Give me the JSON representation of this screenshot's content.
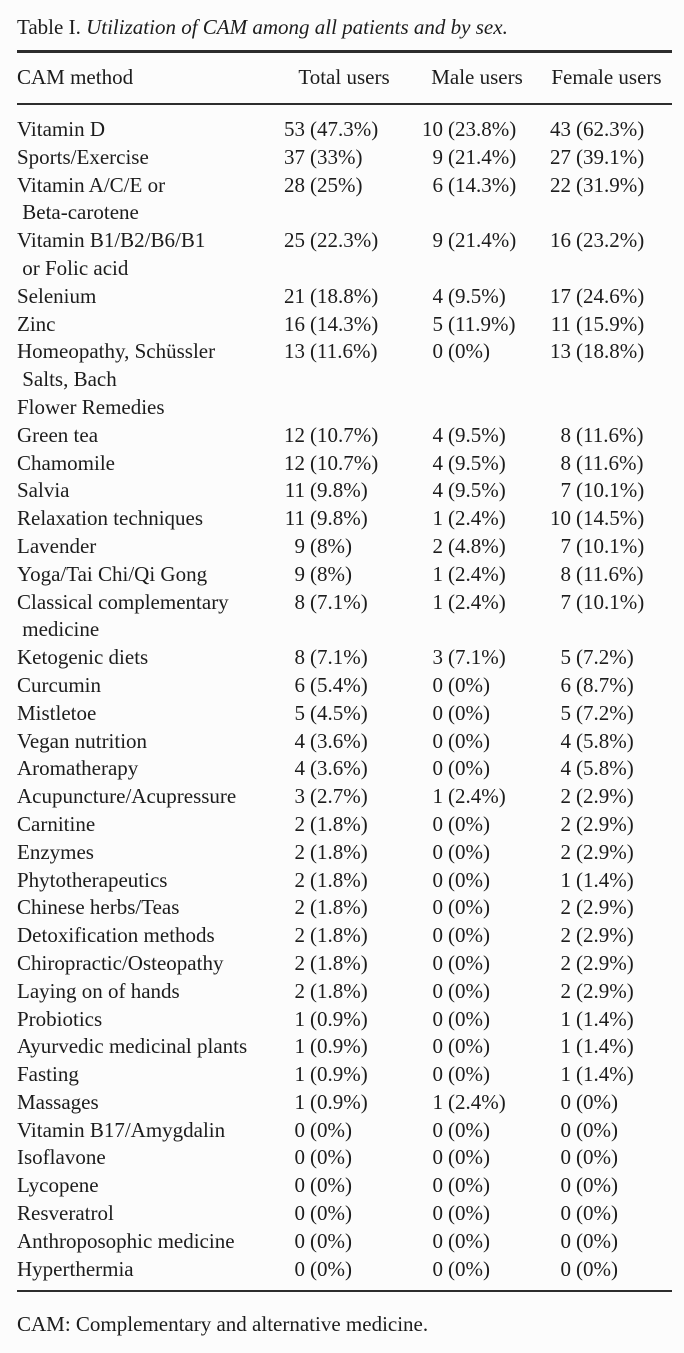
{
  "table": {
    "title_label": "Table I. ",
    "title_caption": "Utilization of CAM among all patients and by sex.",
    "columns": [
      "CAM method",
      "Total users",
      "Male users",
      "Female users"
    ],
    "rows": [
      {
        "method_lines": [
          "Vitamin D"
        ],
        "total": {
          "n": "53",
          "pct": "(47.3%)"
        },
        "male": {
          "n": "10",
          "pct": "(23.8%)"
        },
        "female": {
          "n": "43",
          "pct": "(62.3%)"
        }
      },
      {
        "method_lines": [
          "Sports/Exercise"
        ],
        "total": {
          "n": "37",
          "pct": "(33%)"
        },
        "male": {
          "n": "9",
          "pct": "(21.4%)"
        },
        "female": {
          "n": "27",
          "pct": "(39.1%)"
        }
      },
      {
        "method_lines": [
          "Vitamin A/C/E or",
          " Beta-carotene"
        ],
        "total": {
          "n": "28",
          "pct": "(25%)"
        },
        "male": {
          "n": "6",
          "pct": "(14.3%)"
        },
        "female": {
          "n": "22",
          "pct": "(31.9%)"
        }
      },
      {
        "method_lines": [
          "Vitamin B1/B2/B6/B1",
          " or Folic acid"
        ],
        "total": {
          "n": "25",
          "pct": "(22.3%)"
        },
        "male": {
          "n": "9",
          "pct": "(21.4%)"
        },
        "female": {
          "n": "16",
          "pct": "(23.2%)"
        }
      },
      {
        "method_lines": [
          "Selenium"
        ],
        "total": {
          "n": "21",
          "pct": "(18.8%)"
        },
        "male": {
          "n": "4",
          "pct": "(9.5%)"
        },
        "female": {
          "n": "17",
          "pct": "(24.6%)"
        }
      },
      {
        "method_lines": [
          "Zinc"
        ],
        "total": {
          "n": "16",
          "pct": "(14.3%)"
        },
        "male": {
          "n": "5",
          "pct": "(11.9%)"
        },
        "female": {
          "n": "11",
          "pct": "(15.9%)"
        }
      },
      {
        "method_lines": [
          "Homeopathy, Schüssler",
          " Salts, Bach",
          "Flower Remedies"
        ],
        "total": {
          "n": "13",
          "pct": "(11.6%)"
        },
        "male": {
          "n": "0",
          "pct": "(0%)"
        },
        "female": {
          "n": "13",
          "pct": "(18.8%)"
        }
      },
      {
        "method_lines": [
          "Green tea"
        ],
        "total": {
          "n": "12",
          "pct": "(10.7%)"
        },
        "male": {
          "n": "4",
          "pct": "(9.5%)"
        },
        "female": {
          "n": "8",
          "pct": "(11.6%)"
        }
      },
      {
        "method_lines": [
          "Chamomile"
        ],
        "total": {
          "n": "12",
          "pct": "(10.7%)"
        },
        "male": {
          "n": "4",
          "pct": "(9.5%)"
        },
        "female": {
          "n": "8",
          "pct": "(11.6%)"
        }
      },
      {
        "method_lines": [
          "Salvia"
        ],
        "total": {
          "n": "11",
          "pct": "(9.8%)"
        },
        "male": {
          "n": "4",
          "pct": "(9.5%)"
        },
        "female": {
          "n": "7",
          "pct": "(10.1%)"
        }
      },
      {
        "method_lines": [
          "Relaxation techniques"
        ],
        "total": {
          "n": "11",
          "pct": "(9.8%)"
        },
        "male": {
          "n": "1",
          "pct": "(2.4%)"
        },
        "female": {
          "n": "10",
          "pct": "(14.5%)"
        }
      },
      {
        "method_lines": [
          "Lavender"
        ],
        "total": {
          "n": "9",
          "pct": "(8%)"
        },
        "male": {
          "n": "2",
          "pct": "(4.8%)"
        },
        "female": {
          "n": "7",
          "pct": "(10.1%)"
        }
      },
      {
        "method_lines": [
          "Yoga/Tai Chi/Qi Gong"
        ],
        "total": {
          "n": "9",
          "pct": "(8%)"
        },
        "male": {
          "n": "1",
          "pct": "(2.4%)"
        },
        "female": {
          "n": "8",
          "pct": "(11.6%)"
        }
      },
      {
        "method_lines": [
          "Classical complementary",
          " medicine"
        ],
        "total": {
          "n": "8",
          "pct": "(7.1%)"
        },
        "male": {
          "n": "1",
          "pct": "(2.4%)"
        },
        "female": {
          "n": "7",
          "pct": "(10.1%)"
        }
      },
      {
        "method_lines": [
          "Ketogenic diets"
        ],
        "total": {
          "n": "8",
          "pct": "(7.1%)"
        },
        "male": {
          "n": "3",
          "pct": "(7.1%)"
        },
        "female": {
          "n": "5",
          "pct": "(7.2%)"
        }
      },
      {
        "method_lines": [
          "Curcumin"
        ],
        "total": {
          "n": "6",
          "pct": "(5.4%)"
        },
        "male": {
          "n": "0",
          "pct": "(0%)"
        },
        "female": {
          "n": "6",
          "pct": "(8.7%)"
        }
      },
      {
        "method_lines": [
          "Mistletoe"
        ],
        "total": {
          "n": "5",
          "pct": "(4.5%)"
        },
        "male": {
          "n": "0",
          "pct": "(0%)"
        },
        "female": {
          "n": "5",
          "pct": "(7.2%)"
        }
      },
      {
        "method_lines": [
          "Vegan nutrition"
        ],
        "total": {
          "n": "4",
          "pct": "(3.6%)"
        },
        "male": {
          "n": "0",
          "pct": "(0%)"
        },
        "female": {
          "n": "4",
          "pct": "(5.8%)"
        }
      },
      {
        "method_lines": [
          "Aromatherapy"
        ],
        "total": {
          "n": "4",
          "pct": "(3.6%)"
        },
        "male": {
          "n": "0",
          "pct": "(0%)"
        },
        "female": {
          "n": "4",
          "pct": "(5.8%)"
        }
      },
      {
        "method_lines": [
          "Acupuncture/Acupressure"
        ],
        "total": {
          "n": "3",
          "pct": "(2.7%)"
        },
        "male": {
          "n": "1",
          "pct": "(2.4%)"
        },
        "female": {
          "n": "2",
          "pct": "(2.9%)"
        }
      },
      {
        "method_lines": [
          "Carnitine"
        ],
        "total": {
          "n": "2",
          "pct": "(1.8%)"
        },
        "male": {
          "n": "0",
          "pct": "(0%)"
        },
        "female": {
          "n": "2",
          "pct": "(2.9%)"
        }
      },
      {
        "method_lines": [
          "Enzymes"
        ],
        "total": {
          "n": "2",
          "pct": "(1.8%)"
        },
        "male": {
          "n": "0",
          "pct": "(0%)"
        },
        "female": {
          "n": "2",
          "pct": "(2.9%)"
        }
      },
      {
        "method_lines": [
          "Phytotherapeutics"
        ],
        "total": {
          "n": "2",
          "pct": "(1.8%)"
        },
        "male": {
          "n": "0",
          "pct": "(0%)"
        },
        "female": {
          "n": "1",
          "pct": "(1.4%)"
        }
      },
      {
        "method_lines": [
          "Chinese herbs/Teas"
        ],
        "total": {
          "n": "2",
          "pct": "(1.8%)"
        },
        "male": {
          "n": "0",
          "pct": "(0%)"
        },
        "female": {
          "n": "2",
          "pct": "(2.9%)"
        }
      },
      {
        "method_lines": [
          "Detoxification methods"
        ],
        "total": {
          "n": "2",
          "pct": "(1.8%)"
        },
        "male": {
          "n": "0",
          "pct": "(0%)"
        },
        "female": {
          "n": "2",
          "pct": "(2.9%)"
        }
      },
      {
        "method_lines": [
          "Chiropractic/Osteopathy"
        ],
        "total": {
          "n": "2",
          "pct": "(1.8%)"
        },
        "male": {
          "n": "0",
          "pct": "(0%)"
        },
        "female": {
          "n": "2",
          "pct": "(2.9%)"
        }
      },
      {
        "method_lines": [
          "Laying on of hands"
        ],
        "total": {
          "n": "2",
          "pct": "(1.8%)"
        },
        "male": {
          "n": "0",
          "pct": "(0%)"
        },
        "female": {
          "n": "2",
          "pct": "(2.9%)"
        }
      },
      {
        "method_lines": [
          "Probiotics"
        ],
        "total": {
          "n": "1",
          "pct": "(0.9%)"
        },
        "male": {
          "n": "0",
          "pct": "(0%)"
        },
        "female": {
          "n": "1",
          "pct": "(1.4%)"
        }
      },
      {
        "method_lines": [
          "Ayurvedic medicinal plants"
        ],
        "total": {
          "n": "1",
          "pct": "(0.9%)"
        },
        "male": {
          "n": "0",
          "pct": "(0%)"
        },
        "female": {
          "n": "1",
          "pct": "(1.4%)"
        }
      },
      {
        "method_lines": [
          "Fasting"
        ],
        "total": {
          "n": "1",
          "pct": "(0.9%)"
        },
        "male": {
          "n": "0",
          "pct": "(0%)"
        },
        "female": {
          "n": "1",
          "pct": "(1.4%)"
        }
      },
      {
        "method_lines": [
          "Massages"
        ],
        "total": {
          "n": "1",
          "pct": "(0.9%)"
        },
        "male": {
          "n": "1",
          "pct": "(2.4%)"
        },
        "female": {
          "n": "0",
          "pct": "(0%)"
        }
      },
      {
        "method_lines": [
          "Vitamin B17/Amygdalin"
        ],
        "total": {
          "n": "0",
          "pct": "(0%)"
        },
        "male": {
          "n": "0",
          "pct": "(0%)"
        },
        "female": {
          "n": "0",
          "pct": "(0%)"
        }
      },
      {
        "method_lines": [
          "Isoflavone"
        ],
        "total": {
          "n": "0",
          "pct": "(0%)"
        },
        "male": {
          "n": "0",
          "pct": "(0%)"
        },
        "female": {
          "n": "0",
          "pct": "(0%)"
        }
      },
      {
        "method_lines": [
          "Lycopene"
        ],
        "total": {
          "n": "0",
          "pct": "(0%)"
        },
        "male": {
          "n": "0",
          "pct": "(0%)"
        },
        "female": {
          "n": "0",
          "pct": "(0%)"
        }
      },
      {
        "method_lines": [
          "Resveratrol"
        ],
        "total": {
          "n": "0",
          "pct": "(0%)"
        },
        "male": {
          "n": "0",
          "pct": "(0%)"
        },
        "female": {
          "n": "0",
          "pct": "(0%)"
        }
      },
      {
        "method_lines": [
          "Anthroposophic medicine"
        ],
        "total": {
          "n": "0",
          "pct": "(0%)"
        },
        "male": {
          "n": "0",
          "pct": "(0%)"
        },
        "female": {
          "n": "0",
          "pct": "(0%)"
        }
      },
      {
        "method_lines": [
          "Hyperthermia"
        ],
        "total": {
          "n": "0",
          "pct": "(0%)"
        },
        "male": {
          "n": "0",
          "pct": "(0%)"
        },
        "female": {
          "n": "0",
          "pct": "(0%)"
        }
      }
    ],
    "footnote": "CAM: Complementary and alternative medicine."
  }
}
